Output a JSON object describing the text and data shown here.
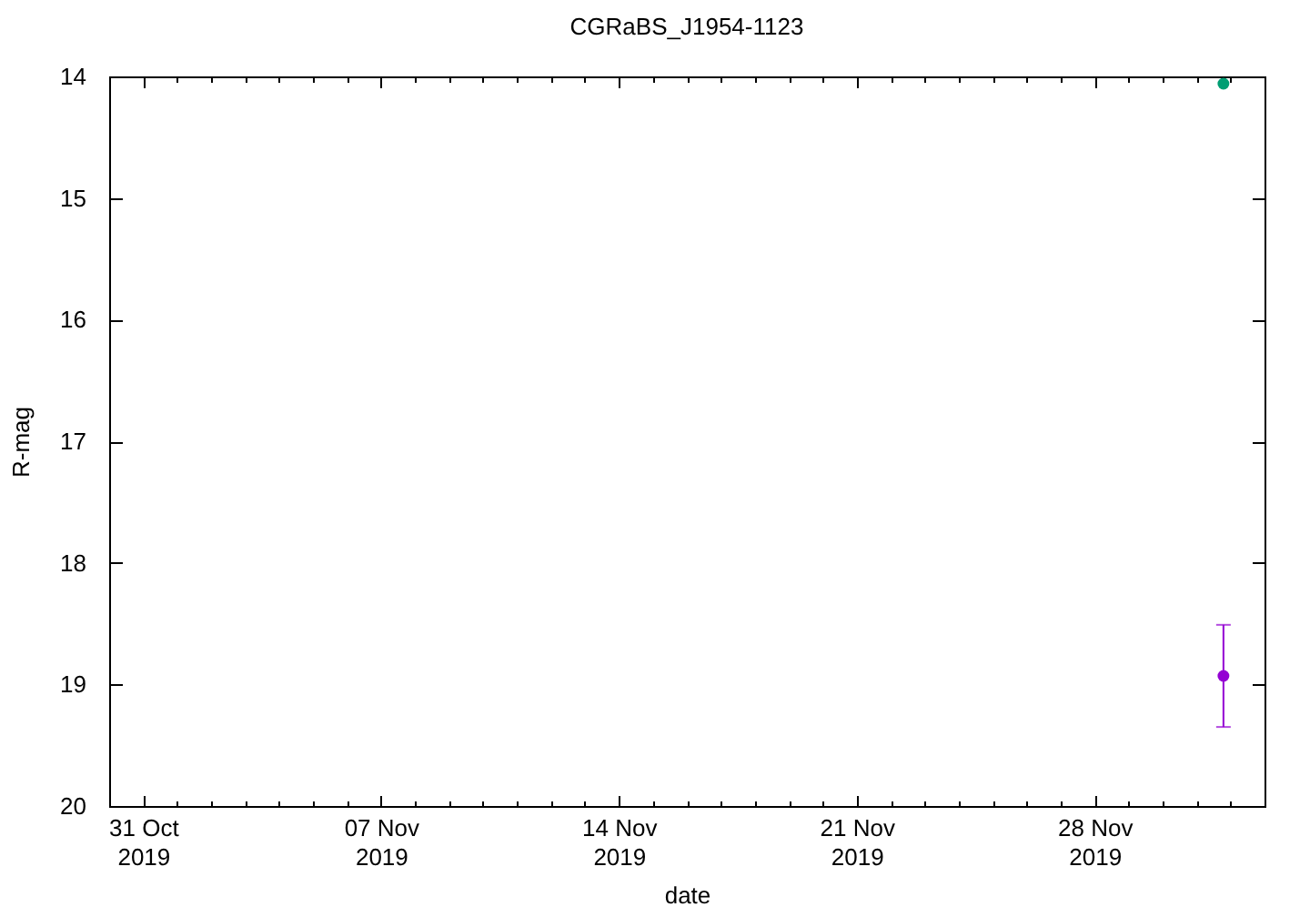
{
  "chart_data": {
    "type": "scatter",
    "title": "CGRaBS_J1954-1123",
    "xlabel": "date",
    "ylabel": "R-mag",
    "x": [
      "2019-12-01T19:00"
    ],
    "series": [
      {
        "color": "#9400d3",
        "values": [
          18.93
        ],
        "errors": [
          0.42
        ]
      },
      {
        "color": "#009e73",
        "values": [
          14.06
        ]
      }
    ],
    "xlim": [
      "2019-10-30",
      "2019-12-03"
    ],
    "xticks": [
      {
        "value": "2019-10-31",
        "label": "31 Oct\n2019"
      },
      {
        "value": "2019-11-01",
        "label": null
      },
      {
        "value": "2019-11-02",
        "label": null
      },
      {
        "value": "2019-11-03",
        "label": null
      },
      {
        "value": "2019-11-04",
        "label": null
      },
      {
        "value": "2019-11-05",
        "label": null
      },
      {
        "value": "2019-11-06",
        "label": null
      },
      {
        "value": "2019-11-07",
        "label": "07 Nov\n2019"
      },
      {
        "value": "2019-11-08",
        "label": null
      },
      {
        "value": "2019-11-09",
        "label": null
      },
      {
        "value": "2019-11-10",
        "label": null
      },
      {
        "value": "2019-11-11",
        "label": null
      },
      {
        "value": "2019-11-12",
        "label": null
      },
      {
        "value": "2019-11-13",
        "label": null
      },
      {
        "value": "2019-11-14",
        "label": "14 Nov\n2019"
      },
      {
        "value": "2019-11-15",
        "label": null
      },
      {
        "value": "2019-11-16",
        "label": null
      },
      {
        "value": "2019-11-17",
        "label": null
      },
      {
        "value": "2019-11-18",
        "label": null
      },
      {
        "value": "2019-11-19",
        "label": null
      },
      {
        "value": "2019-11-20",
        "label": null
      },
      {
        "value": "2019-11-21",
        "label": "21 Nov\n2019"
      },
      {
        "value": "2019-11-22",
        "label": null
      },
      {
        "value": "2019-11-23",
        "label": null
      },
      {
        "value": "2019-11-24",
        "label": null
      },
      {
        "value": "2019-11-25",
        "label": null
      },
      {
        "value": "2019-11-26",
        "label": null
      },
      {
        "value": "2019-11-27",
        "label": null
      },
      {
        "value": "2019-11-28",
        "label": "28 Nov\n2019"
      },
      {
        "value": "2019-11-29",
        "label": null
      },
      {
        "value": "2019-11-30",
        "label": null
      },
      {
        "value": "2019-12-01",
        "label": null
      },
      {
        "value": "2019-12-02",
        "label": null
      }
    ],
    "ylim": [
      20,
      14
    ],
    "yticks": [
      14,
      15,
      16,
      17,
      18,
      19,
      20
    ],
    "marker": "circle"
  }
}
